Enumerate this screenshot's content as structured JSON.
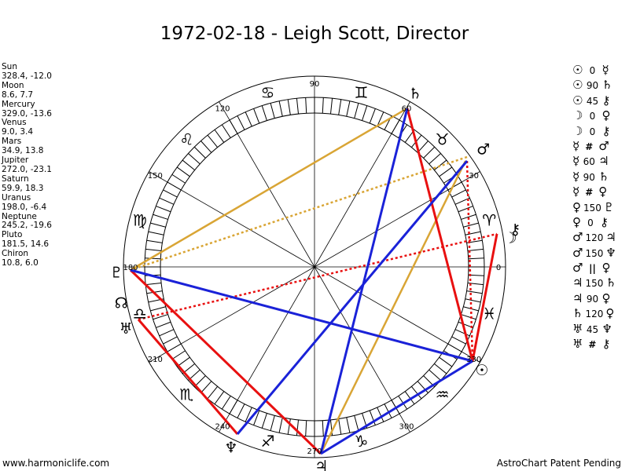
{
  "title": "1972-02-18 - Leigh Scott, Director",
  "planets": [
    {
      "name": "Sun",
      "coords": "328.4, -12.0"
    },
    {
      "name": "Moon",
      "coords": "8.6, 7.7"
    },
    {
      "name": "Mercury",
      "coords": "329.0, -13.6"
    },
    {
      "name": "Venus",
      "coords": "9.0, 3.4"
    },
    {
      "name": "Mars",
      "coords": "34.9, 13.8"
    },
    {
      "name": "Jupiter",
      "coords": "272.0, -23.1"
    },
    {
      "name": "Saturn",
      "coords": "59.9, 18.3"
    },
    {
      "name": "Uranus",
      "coords": "198.0, -6.4"
    },
    {
      "name": "Neptune",
      "coords": "245.2, -19.6"
    },
    {
      "name": "Pluto",
      "coords": "181.5, 14.6"
    },
    {
      "name": "Chiron",
      "coords": "10.8, 6.0"
    }
  ],
  "aspects": [
    {
      "p1": "☉",
      "angle": "0",
      "p2": "☿"
    },
    {
      "p1": "☉",
      "angle": "90",
      "p2": "♄"
    },
    {
      "p1": "☉",
      "angle": "45",
      "p2": "⚷"
    },
    {
      "p1": "☽",
      "angle": "0",
      "p2": "♀"
    },
    {
      "p1": "☽",
      "angle": "0",
      "p2": "⚷"
    },
    {
      "p1": "☿",
      "angle": "#",
      "p2": "♂"
    },
    {
      "p1": "☿",
      "angle": "60",
      "p2": "♃"
    },
    {
      "p1": "☿",
      "angle": "90",
      "p2": "♄"
    },
    {
      "p1": "☿",
      "angle": "#",
      "p2": "♀"
    },
    {
      "p1": "♀",
      "angle": "150",
      "p2": "♇"
    },
    {
      "p1": "♀",
      "angle": "0",
      "p2": "⚷"
    },
    {
      "p1": "♂",
      "angle": "120",
      "p2": "♃"
    },
    {
      "p1": "♂",
      "angle": "150",
      "p2": "♆"
    },
    {
      "p1": "♂",
      "angle": "||",
      "p2": "♀"
    },
    {
      "p1": "♃",
      "angle": "150",
      "p2": "♄"
    },
    {
      "p1": "♃",
      "angle": "90",
      "p2": "♀"
    },
    {
      "p1": "♄",
      "angle": "120",
      "p2": "♀"
    },
    {
      "p1": "♅",
      "angle": "45",
      "p2": "♆"
    },
    {
      "p1": "♅",
      "angle": "#",
      "p2": "⚷"
    }
  ],
  "wheel": {
    "degree_labels": [
      "0",
      "30",
      "60",
      "90",
      "120",
      "150",
      "180",
      "210",
      "240",
      "270",
      "300",
      "330"
    ],
    "sign_glyphs": [
      "♈",
      "♉",
      "♊",
      "♋",
      "♌",
      "♍",
      "♎",
      "♏",
      "♐",
      "♑",
      "♒",
      "♓"
    ],
    "planet_glyphs": [
      {
        "name": "sun",
        "glyph": "☉"
      },
      {
        "name": "moon",
        "glyph": "☽"
      },
      {
        "name": "mercury",
        "glyph": "☿"
      },
      {
        "name": "venus",
        "glyph": "♀"
      },
      {
        "name": "mars",
        "glyph": "♂"
      },
      {
        "name": "jupiter",
        "glyph": "♃"
      },
      {
        "name": "saturn",
        "glyph": "♄"
      },
      {
        "name": "uranus",
        "glyph": "♅"
      },
      {
        "name": "neptune",
        "glyph": "♆"
      },
      {
        "name": "pluto",
        "glyph": "♇"
      },
      {
        "name": "chiron",
        "glyph": "⚷"
      },
      {
        "name": "node",
        "glyph": "☊"
      }
    ],
    "colors": {
      "red": "#e81010",
      "blue": "#1a22d8",
      "gold": "#d9a535"
    }
  },
  "footer": {
    "left": "www.harmoniclife.com",
    "right": "AstroChart Patent Pending"
  }
}
